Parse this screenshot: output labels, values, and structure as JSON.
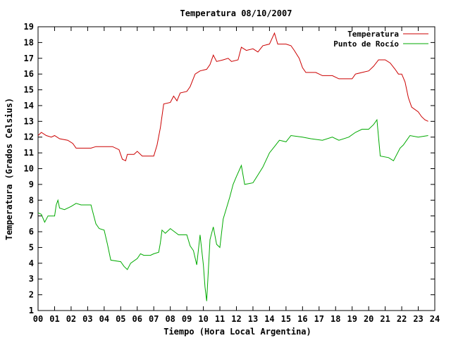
{
  "chart_data": {
    "type": "line",
    "title": "Temperatura 08/10/2007",
    "xlabel": "Tiempo (Hora Local Argentina)",
    "ylabel": "Temperatura (Grados Celsius)",
    "xlim": [
      0,
      24
    ],
    "ylim": [
      1,
      19
    ],
    "x_ticks": [
      0,
      1,
      2,
      3,
      4,
      5,
      6,
      7,
      8,
      9,
      10,
      11,
      12,
      13,
      14,
      15,
      16,
      17,
      18,
      19,
      20,
      21,
      22,
      23,
      24
    ],
    "x_tick_labels": [
      "00",
      "01",
      "02",
      "03",
      "04",
      "05",
      "06",
      "07",
      "08",
      "09",
      "10",
      "11",
      "12",
      "13",
      "14",
      "15",
      "16",
      "17",
      "18",
      "19",
      "20",
      "21",
      "22",
      "23",
      "24"
    ],
    "y_ticks": [
      1,
      2,
      3,
      4,
      5,
      6,
      7,
      8,
      9,
      10,
      11,
      12,
      13,
      14,
      15,
      16,
      17,
      18,
      19
    ],
    "y_tick_labels": [
      "1",
      "2",
      "3",
      "4",
      "5",
      "6",
      "7",
      "8",
      "9",
      "10",
      "11",
      "12",
      "13",
      "14",
      "15",
      "16",
      "17",
      "18",
      "19"
    ],
    "grid": false,
    "legend_position": "top-right",
    "series": [
      {
        "name": "Temperatura",
        "color": "#cc0000",
        "points": [
          [
            0,
            12.1
          ],
          [
            0.2,
            12.3
          ],
          [
            0.5,
            12.1
          ],
          [
            0.8,
            12.0
          ],
          [
            1.0,
            12.1
          ],
          [
            1.3,
            11.9
          ],
          [
            1.8,
            11.8
          ],
          [
            2.1,
            11.6
          ],
          [
            2.3,
            11.3
          ],
          [
            3.0,
            11.3
          ],
          [
            3.2,
            11.3
          ],
          [
            3.5,
            11.4
          ],
          [
            4.5,
            11.4
          ],
          [
            4.9,
            11.2
          ],
          [
            5.1,
            10.6
          ],
          [
            5.3,
            10.5
          ],
          [
            5.4,
            10.9
          ],
          [
            5.8,
            10.9
          ],
          [
            6.0,
            11.1
          ],
          [
            6.3,
            10.8
          ],
          [
            7.0,
            10.8
          ],
          [
            7.2,
            11.5
          ],
          [
            7.4,
            12.6
          ],
          [
            7.6,
            14.1
          ],
          [
            8.0,
            14.2
          ],
          [
            8.2,
            14.6
          ],
          [
            8.4,
            14.3
          ],
          [
            8.6,
            14.8
          ],
          [
            9.0,
            14.9
          ],
          [
            9.2,
            15.2
          ],
          [
            9.5,
            16.0
          ],
          [
            9.8,
            16.2
          ],
          [
            10.2,
            16.3
          ],
          [
            10.4,
            16.6
          ],
          [
            10.6,
            17.2
          ],
          [
            10.8,
            16.8
          ],
          [
            11.2,
            16.9
          ],
          [
            11.5,
            17.0
          ],
          [
            11.7,
            16.8
          ],
          [
            12.1,
            16.9
          ],
          [
            12.3,
            17.7
          ],
          [
            12.6,
            17.5
          ],
          [
            13.0,
            17.6
          ],
          [
            13.3,
            17.4
          ],
          [
            13.6,
            17.8
          ],
          [
            14.0,
            17.9
          ],
          [
            14.3,
            18.6
          ],
          [
            14.5,
            17.9
          ],
          [
            15.0,
            17.9
          ],
          [
            15.3,
            17.8
          ],
          [
            15.5,
            17.5
          ],
          [
            15.8,
            17.0
          ],
          [
            16.0,
            16.4
          ],
          [
            16.2,
            16.1
          ],
          [
            16.8,
            16.1
          ],
          [
            17.2,
            15.9
          ],
          [
            17.8,
            15.9
          ],
          [
            18.2,
            15.7
          ],
          [
            19.0,
            15.7
          ],
          [
            19.2,
            16.0
          ],
          [
            19.6,
            16.1
          ],
          [
            20.0,
            16.2
          ],
          [
            20.3,
            16.5
          ],
          [
            20.6,
            16.9
          ],
          [
            21.0,
            16.9
          ],
          [
            21.3,
            16.7
          ],
          [
            21.6,
            16.3
          ],
          [
            21.8,
            16.0
          ],
          [
            22.0,
            16.0
          ],
          [
            22.2,
            15.5
          ],
          [
            22.4,
            14.5
          ],
          [
            22.6,
            13.9
          ],
          [
            23.0,
            13.6
          ],
          [
            23.2,
            13.3
          ],
          [
            23.4,
            13.1
          ],
          [
            23.6,
            13.0
          ]
        ]
      },
      {
        "name": "Punto de Rocío",
        "color": "#00aa00",
        "points": [
          [
            0,
            7.2
          ],
          [
            0.2,
            7.1
          ],
          [
            0.4,
            6.6
          ],
          [
            0.6,
            7.0
          ],
          [
            1.0,
            7.0
          ],
          [
            1.1,
            7.7
          ],
          [
            1.2,
            8.0
          ],
          [
            1.3,
            7.5
          ],
          [
            1.6,
            7.4
          ],
          [
            2.0,
            7.6
          ],
          [
            2.3,
            7.8
          ],
          [
            2.6,
            7.7
          ],
          [
            3.2,
            7.7
          ],
          [
            3.3,
            7.3
          ],
          [
            3.5,
            6.5
          ],
          [
            3.7,
            6.2
          ],
          [
            4.0,
            6.1
          ],
          [
            4.2,
            5.2
          ],
          [
            4.4,
            4.2
          ],
          [
            5.0,
            4.1
          ],
          [
            5.2,
            3.8
          ],
          [
            5.4,
            3.6
          ],
          [
            5.6,
            4.0
          ],
          [
            6.0,
            4.3
          ],
          [
            6.2,
            4.6
          ],
          [
            6.4,
            4.5
          ],
          [
            6.8,
            4.5
          ],
          [
            7.0,
            4.6
          ],
          [
            7.3,
            4.7
          ],
          [
            7.4,
            5.3
          ],
          [
            7.5,
            6.1
          ],
          [
            7.7,
            5.9
          ],
          [
            8.0,
            6.2
          ],
          [
            8.5,
            5.8
          ],
          [
            9.0,
            5.8
          ],
          [
            9.2,
            5.1
          ],
          [
            9.4,
            4.8
          ],
          [
            9.6,
            3.9
          ],
          [
            9.8,
            5.8
          ],
          [
            10.0,
            3.9
          ],
          [
            10.1,
            2.5
          ],
          [
            10.2,
            1.6
          ],
          [
            10.4,
            5.5
          ],
          [
            10.6,
            6.3
          ],
          [
            10.8,
            5.2
          ],
          [
            11.0,
            5.0
          ],
          [
            11.2,
            6.8
          ],
          [
            11.4,
            7.5
          ],
          [
            11.6,
            8.2
          ],
          [
            11.8,
            9.0
          ],
          [
            12.0,
            9.5
          ],
          [
            12.3,
            10.2
          ],
          [
            12.5,
            9.0
          ],
          [
            13.0,
            9.1
          ],
          [
            13.3,
            9.6
          ],
          [
            13.6,
            10.1
          ],
          [
            14.0,
            11.0
          ],
          [
            14.3,
            11.4
          ],
          [
            14.6,
            11.8
          ],
          [
            15.0,
            11.7
          ],
          [
            15.3,
            12.1
          ],
          [
            16.0,
            12.0
          ],
          [
            16.5,
            11.9
          ],
          [
            17.2,
            11.8
          ],
          [
            17.8,
            12.0
          ],
          [
            18.2,
            11.8
          ],
          [
            18.8,
            12.0
          ],
          [
            19.2,
            12.3
          ],
          [
            19.6,
            12.5
          ],
          [
            20.0,
            12.5
          ],
          [
            20.3,
            12.8
          ],
          [
            20.5,
            13.1
          ],
          [
            20.7,
            10.8
          ],
          [
            21.2,
            10.7
          ],
          [
            21.5,
            10.5
          ],
          [
            21.9,
            11.3
          ],
          [
            22.1,
            11.5
          ],
          [
            22.3,
            11.8
          ],
          [
            22.5,
            12.1
          ],
          [
            23.0,
            12.0
          ],
          [
            23.6,
            12.1
          ]
        ]
      }
    ]
  }
}
